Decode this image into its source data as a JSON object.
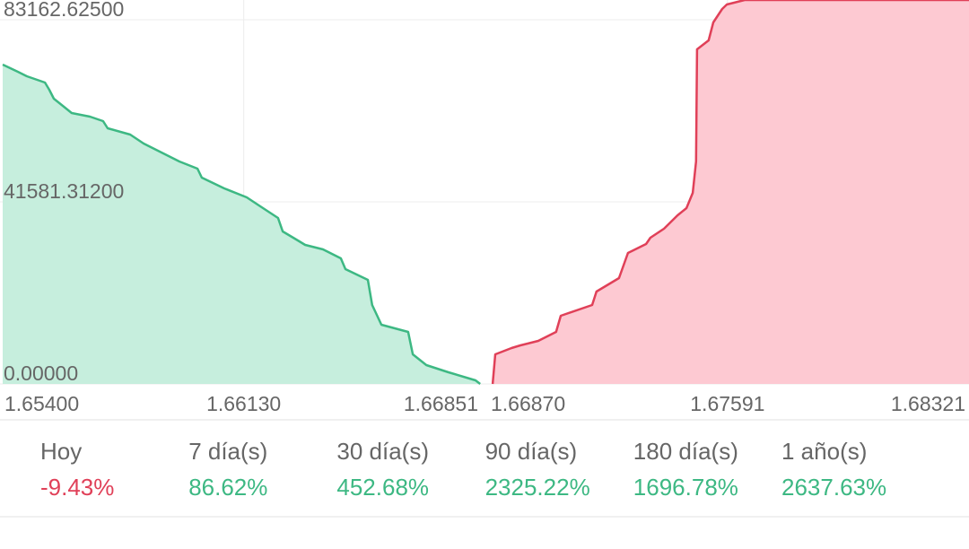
{
  "chart_data": [
    {
      "type": "area",
      "xlim": [
        1.654,
        1.66851
      ],
      "ylim": [
        0,
        87667
      ],
      "xticks": [
        {
          "value": 1.654,
          "label": "1.65400"
        },
        {
          "value": 1.6613,
          "label": "1.66130"
        },
        {
          "value": 1.66851,
          "label": "1.66851"
        }
      ],
      "yticks": [
        {
          "value": 0,
          "label": "0.00000"
        },
        {
          "value": 41581.312,
          "label": "41581.31200"
        },
        {
          "value": 83162.625,
          "label": "83162.62500"
        }
      ],
      "grid": true,
      "series": [
        {
          "color": "#3db883",
          "fill_color": "#c6eedd",
          "x": [
            1.654,
            1.65446,
            1.65473,
            1.65528,
            1.65541,
            1.65555,
            1.65582,
            1.65609,
            1.65664,
            1.65704,
            1.65718,
            1.65786,
            1.65827,
            1.65881,
            1.65935,
            1.6599,
            1.66003,
            1.66071,
            1.66139,
            1.6618,
            1.66234,
            1.66248,
            1.66289,
            1.66316,
            1.6637,
            1.66424,
            1.66438,
            1.66506,
            1.66519,
            1.66547,
            1.66628,
            1.66642,
            1.66683,
            1.6675,
            1.66832,
            1.66846
          ],
          "values": [
            72920,
            71281,
            70257,
            68823,
            67184,
            65136,
            63497,
            61859,
            61039,
            60015,
            58377,
            56943,
            54894,
            52846,
            50798,
            49159,
            47111,
            44653,
            42605,
            40556,
            37894,
            34821,
            32978,
            31749,
            30725,
            28676,
            26218,
            23760,
            18025,
            13519,
            11880,
            6759,
            4301,
            2663,
            819,
            0
          ]
        }
      ]
    },
    {
      "type": "area",
      "xlim": [
        1.6687,
        1.68321
      ],
      "ylim": [
        0,
        87667
      ],
      "xticks": [
        {
          "value": 1.6687,
          "label": "1.66870"
        },
        {
          "value": 1.67591,
          "label": "1.67591"
        },
        {
          "value": 1.68321,
          "label": "1.68321"
        }
      ],
      "grid": true,
      "series": [
        {
          "color": "#e04058",
          "fill_color": "#fdc9d2",
          "x": [
            1.66881,
            1.66889,
            1.66938,
            1.66965,
            1.67019,
            1.67073,
            1.67087,
            1.67182,
            1.67195,
            1.67263,
            1.6729,
            1.67345,
            1.67358,
            1.67399,
            1.6744,
            1.67467,
            1.67486,
            1.67496,
            1.67499,
            1.67534,
            1.67548,
            1.67575,
            1.67589,
            1.67643,
            1.68321
          ],
          "values": [
            0,
            6759,
            8193,
            8808,
            9832,
            11880,
            15567,
            18025,
            21097,
            24170,
            29905,
            31953,
            33387,
            35436,
            38508,
            40147,
            43629,
            50798,
            76402,
            78450,
            82547,
            85619,
            86643,
            87667,
            87667
          ]
        }
      ]
    }
  ],
  "stats": {
    "up_color": "#3db883",
    "down_color": "#e04058",
    "columns": [
      {
        "label": "Hoy",
        "value": "-9.43%"
      },
      {
        "label": "7 día(s)",
        "value": "86.62%"
      },
      {
        "label": "30 día(s)",
        "value": "452.68%"
      },
      {
        "label": "90 día(s)",
        "value": "2325.22%"
      },
      {
        "label": "180 día(s)",
        "value": "1696.78%"
      },
      {
        "label": "1 año(s)",
        "value": "2637.63%"
      }
    ]
  }
}
